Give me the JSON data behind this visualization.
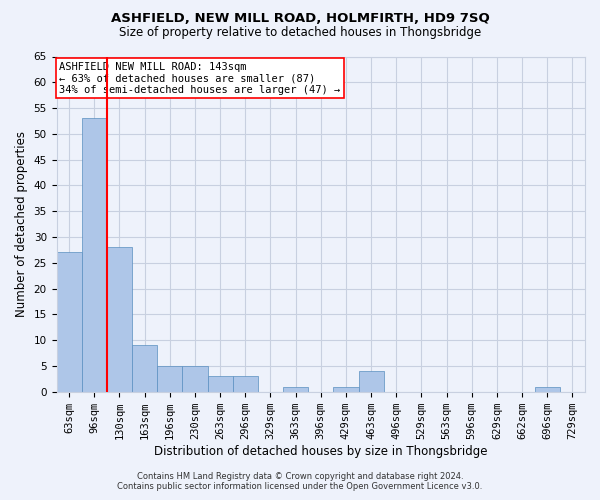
{
  "title1": "ASHFIELD, NEW MILL ROAD, HOLMFIRTH, HD9 7SQ",
  "title2": "Size of property relative to detached houses in Thongsbridge",
  "xlabel": "Distribution of detached houses by size in Thongsbridge",
  "ylabel": "Number of detached properties",
  "footer1": "Contains HM Land Registry data © Crown copyright and database right 2024.",
  "footer2": "Contains public sector information licensed under the Open Government Licence v3.0.",
  "annotation_line1": "ASHFIELD NEW MILL ROAD: 143sqm",
  "annotation_line2": "← 63% of detached houses are smaller (87)",
  "annotation_line3": "34% of semi-detached houses are larger (47) →",
  "bins": [
    "63sqm",
    "96sqm",
    "130sqm",
    "163sqm",
    "196sqm",
    "230sqm",
    "263sqm",
    "296sqm",
    "329sqm",
    "363sqm",
    "396sqm",
    "429sqm",
    "463sqm",
    "496sqm",
    "529sqm",
    "563sqm",
    "596sqm",
    "629sqm",
    "662sqm",
    "696sqm",
    "729sqm"
  ],
  "values": [
    27,
    53,
    28,
    9,
    5,
    5,
    3,
    3,
    0,
    1,
    0,
    1,
    4,
    0,
    0,
    0,
    0,
    0,
    0,
    1,
    0
  ],
  "bar_color": "#aec6e8",
  "bar_edge_color": "#5a8fc0",
  "ref_line_color": "red",
  "grid_color": "#c8d0e0",
  "background_color": "#eef2fb",
  "ylim": [
    0,
    65
  ],
  "yticks": [
    0,
    5,
    10,
    15,
    20,
    25,
    30,
    35,
    40,
    45,
    50,
    55,
    60,
    65
  ],
  "annotation_box_color": "white",
  "annotation_box_edge": "red",
  "title1_fontsize": 9.5,
  "title2_fontsize": 8.5,
  "xlabel_fontsize": 8.5,
  "ylabel_fontsize": 8.5,
  "tick_fontsize": 7.5,
  "footer_fontsize": 6.0,
  "ann_fontsize": 7.5
}
